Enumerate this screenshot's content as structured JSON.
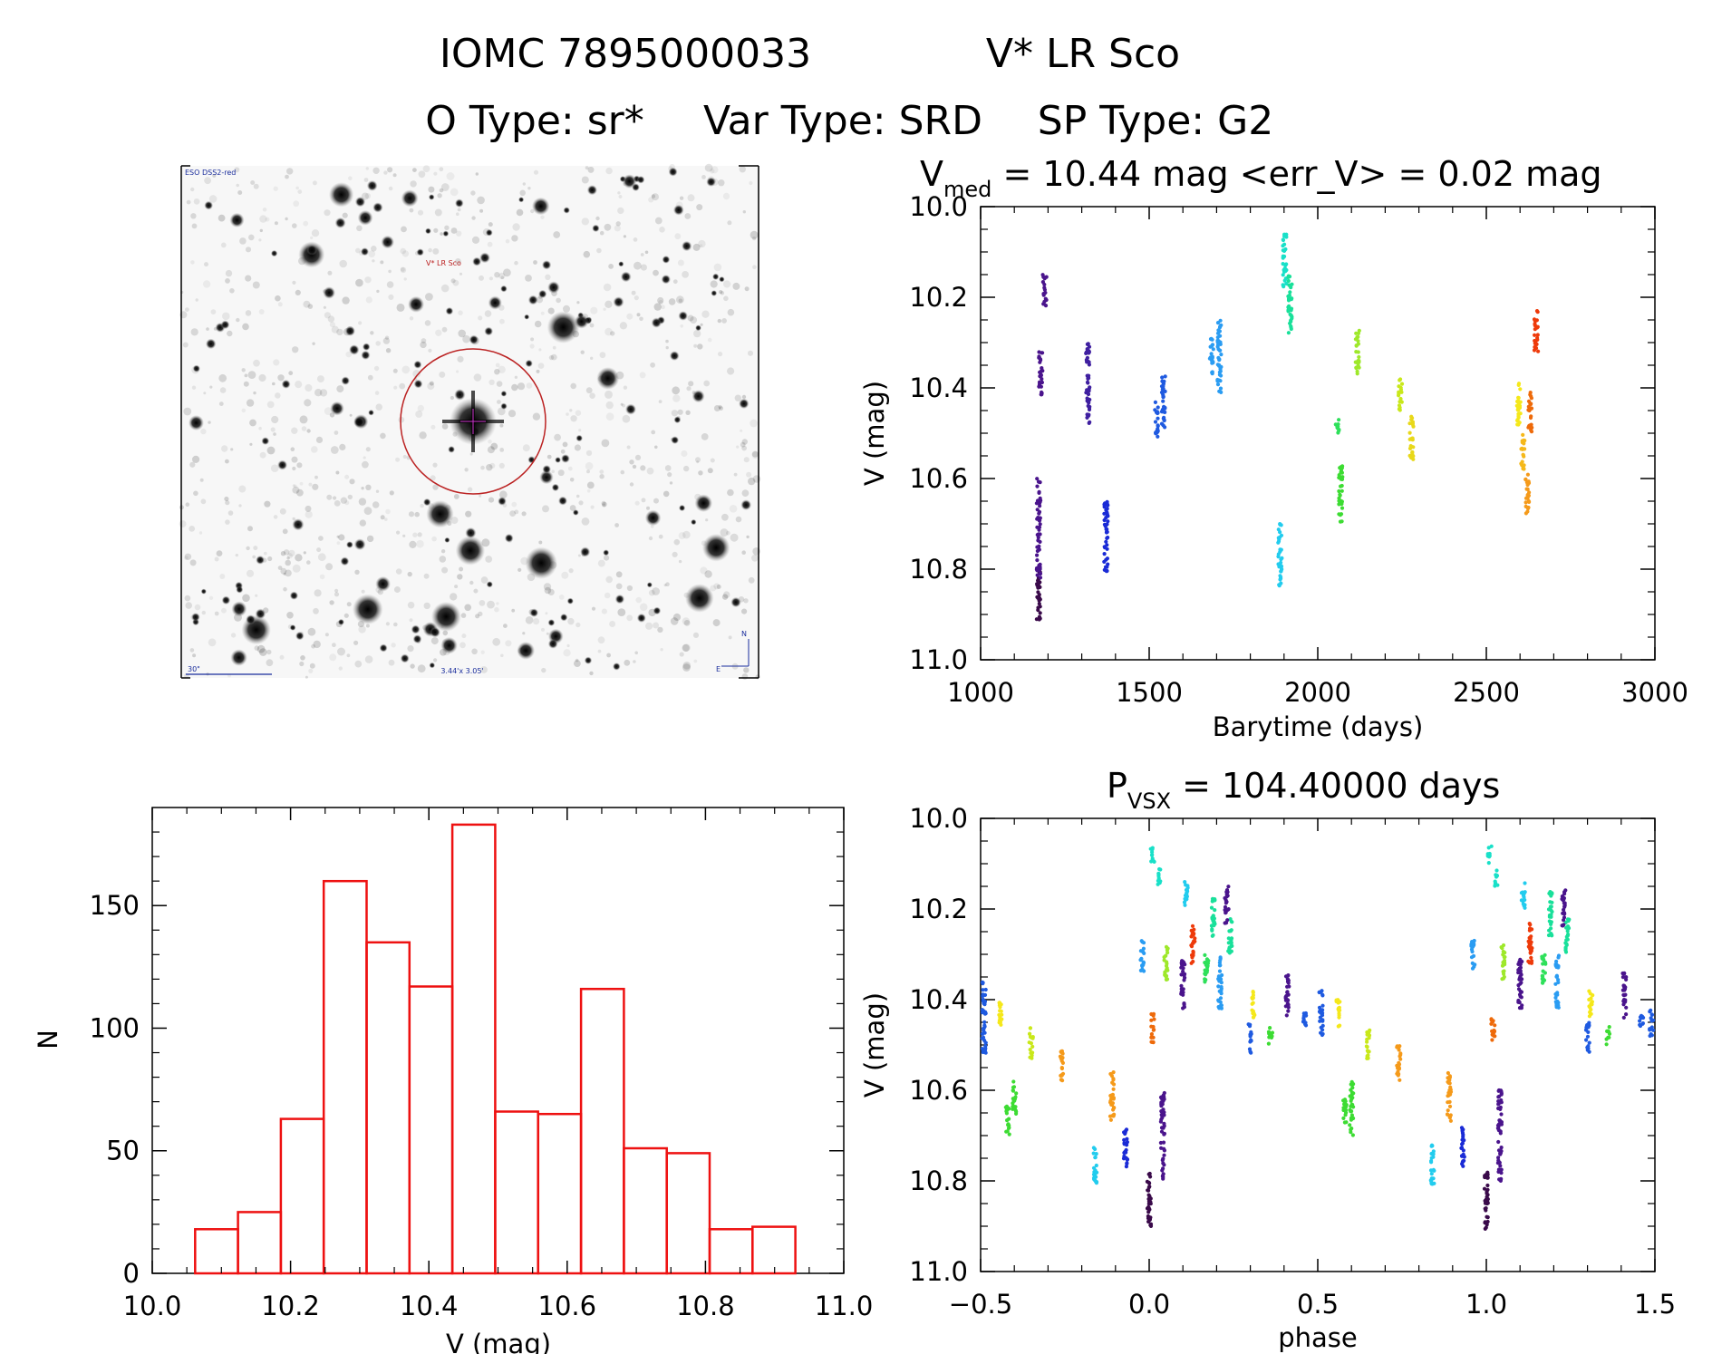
{
  "header": {
    "line1_id": "IOMC 7895000033",
    "line1_name": "V* LR Sco",
    "line2_otype": "O Type: sr*",
    "line2_vartype": "Var Type: SRD",
    "line2_sptype": "SP Type: G2"
  },
  "thumbnail": {
    "survey_label": "ESO DSS2-red",
    "target_label": "V* LR Sco",
    "scale_label": "30\"",
    "fov_label": "3.44'x 3.05'",
    "compass_n": "N",
    "compass_e": "E"
  },
  "colors": {
    "histogram": "#ee1111",
    "circle": "#bb2222",
    "thumb_label": "#1a2d9c"
  },
  "chart_data": [
    {
      "id": "lightcurve",
      "type": "scatter",
      "title_main": "V",
      "title_sub": "med",
      "title_rest": " = 10.44 mag <err_V> = 0.02 mag",
      "xlabel": "Barytime (days)",
      "ylabel": "V (mag)",
      "xlim": [
        1000,
        3000
      ],
      "ylim": [
        11.0,
        10.0
      ],
      "xticks": [
        "1000",
        "1500",
        "2000",
        "2500",
        "3000"
      ],
      "yticks": [
        "10.0",
        "10.2",
        "10.4",
        "10.6",
        "10.8",
        "11.0"
      ],
      "series": [
        {
          "color": "#3a0a4a",
          "x": 1172,
          "ymin": 10.8,
          "ymax": 10.92
        },
        {
          "color": "#4a148c",
          "x": 1172,
          "ymin": 10.6,
          "ymax": 10.82
        },
        {
          "color": "#4a148c",
          "x": 1178,
          "ymin": 10.32,
          "ymax": 10.42
        },
        {
          "color": "#4a148c",
          "x": 1190,
          "ymin": 10.15,
          "ymax": 10.22
        },
        {
          "color": "#3f1fa0",
          "x": 1318,
          "ymin": 10.3,
          "ymax": 10.48
        },
        {
          "color": "#1a2bd6",
          "x": 1372,
          "ymin": 10.65,
          "ymax": 10.81
        },
        {
          "color": "#1f5ae0",
          "x": 1522,
          "ymin": 10.43,
          "ymax": 10.51
        },
        {
          "color": "#1f5ae0",
          "x": 1542,
          "ymin": 10.37,
          "ymax": 10.5
        },
        {
          "color": "#2a9cf2",
          "x": 1685,
          "ymin": 10.29,
          "ymax": 10.37
        },
        {
          "color": "#2a9cf2",
          "x": 1708,
          "ymin": 10.25,
          "ymax": 10.41
        },
        {
          "color": "#22ccee",
          "x": 1888,
          "ymin": 10.7,
          "ymax": 10.84
        },
        {
          "color": "#19e0c8",
          "x": 1902,
          "ymin": 10.06,
          "ymax": 10.18
        },
        {
          "color": "#19e09a",
          "x": 1918,
          "ymin": 10.15,
          "ymax": 10.29
        },
        {
          "color": "#2ee05a",
          "x": 2058,
          "ymin": 10.47,
          "ymax": 10.5
        },
        {
          "color": "#3ddc33",
          "x": 2068,
          "ymin": 10.57,
          "ymax": 10.7
        },
        {
          "color": "#9ee82a",
          "x": 2118,
          "ymin": 10.27,
          "ymax": 10.37
        },
        {
          "color": "#c9e81a",
          "x": 2245,
          "ymin": 10.38,
          "ymax": 10.45
        },
        {
          "color": "#e8d81a",
          "x": 2278,
          "ymin": 10.46,
          "ymax": 10.56
        },
        {
          "color": "#f5e81a",
          "x": 2596,
          "ymin": 10.39,
          "ymax": 10.49
        },
        {
          "color": "#f5b81a",
          "x": 2608,
          "ymin": 10.5,
          "ymax": 10.58
        },
        {
          "color": "#f59a1a",
          "x": 2622,
          "ymin": 10.59,
          "ymax": 10.68
        },
        {
          "color": "#ee6a0a",
          "x": 2630,
          "ymin": 10.41,
          "ymax": 10.5
        },
        {
          "color": "#ee3a0a",
          "x": 2648,
          "ymin": 10.23,
          "ymax": 10.32
        }
      ]
    },
    {
      "id": "phased",
      "type": "scatter",
      "title_main": "P",
      "title_sub": "VSX",
      "title_rest": " = 104.40000 days",
      "xlabel": "phase",
      "ylabel": "V (mag)",
      "xlim": [
        -0.5,
        1.5
      ],
      "ylim": [
        11.0,
        10.0
      ],
      "xticks": [
        "−0.5",
        "0.0",
        "0.5",
        "1.0",
        "1.5"
      ],
      "yticks": [
        "10.0",
        "10.2",
        "10.4",
        "10.6",
        "10.8",
        "11.0"
      ],
      "series": [
        {
          "color": "#1f5ae0",
          "x": -0.49,
          "ymin": 10.36,
          "ymax": 10.52
        },
        {
          "color": "#f5e81a",
          "x": -0.44,
          "ymin": 10.4,
          "ymax": 10.46
        },
        {
          "color": "#3ddc33",
          "x": -0.42,
          "ymin": 10.63,
          "ymax": 10.7
        },
        {
          "color": "#3ddc33",
          "x": -0.4,
          "ymin": 10.58,
          "ymax": 10.66
        },
        {
          "color": "#c9e81a",
          "x": -0.35,
          "ymin": 10.46,
          "ymax": 10.53
        },
        {
          "color": "#f59a1a",
          "x": -0.26,
          "ymin": 10.5,
          "ymax": 10.58
        },
        {
          "color": "#22ccee",
          "x": -0.16,
          "ymin": 10.72,
          "ymax": 10.81
        },
        {
          "color": "#f59a1a",
          "x": -0.11,
          "ymin": 10.56,
          "ymax": 10.67
        },
        {
          "color": "#1a2bd6",
          "x": -0.07,
          "ymin": 10.68,
          "ymax": 10.77
        },
        {
          "color": "#2a9cf2",
          "x": -0.02,
          "ymin": 10.27,
          "ymax": 10.34
        },
        {
          "color": "#3a0a4a",
          "x": 0.0,
          "ymin": 10.78,
          "ymax": 10.91
        },
        {
          "color": "#ee6a0a",
          "x": 0.01,
          "ymin": 10.43,
          "ymax": 10.5
        },
        {
          "color": "#19e0c8",
          "x": 0.01,
          "ymin": 10.06,
          "ymax": 10.1
        },
        {
          "color": "#19e0c8",
          "x": 0.03,
          "ymin": 10.11,
          "ymax": 10.15
        },
        {
          "color": "#4a148c",
          "x": 0.04,
          "ymin": 10.6,
          "ymax": 10.8
        },
        {
          "color": "#9ee82a",
          "x": 0.05,
          "ymin": 10.28,
          "ymax": 10.36
        },
        {
          "color": "#4a148c",
          "x": 0.1,
          "ymin": 10.3,
          "ymax": 10.42
        },
        {
          "color": "#22ccee",
          "x": 0.11,
          "ymin": 10.14,
          "ymax": 10.2
        },
        {
          "color": "#ee3a0a",
          "x": 0.13,
          "ymin": 10.23,
          "ymax": 10.32
        },
        {
          "color": "#2ee05a",
          "x": 0.17,
          "ymin": 10.3,
          "ymax": 10.37
        },
        {
          "color": "#19e09a",
          "x": 0.19,
          "ymin": 10.16,
          "ymax": 10.26
        },
        {
          "color": "#2a9cf2",
          "x": 0.21,
          "ymin": 10.3,
          "ymax": 10.42
        },
        {
          "color": "#19e09a",
          "x": 0.24,
          "ymin": 10.22,
          "ymax": 10.3
        },
        {
          "color": "#4a148c",
          "x": 0.23,
          "ymin": 10.15,
          "ymax": 10.24
        },
        {
          "color": "#1f5ae0",
          "x": 0.3,
          "ymin": 10.45,
          "ymax": 10.52
        },
        {
          "color": "#f5e81a",
          "x": 0.31,
          "ymin": 10.38,
          "ymax": 10.44
        },
        {
          "color": "#3ddc33",
          "x": 0.36,
          "ymin": 10.46,
          "ymax": 10.5
        },
        {
          "color": "#4a148c",
          "x": 0.41,
          "ymin": 10.34,
          "ymax": 10.44
        },
        {
          "color": "#1f5ae0",
          "x": 0.46,
          "ymin": 10.43,
          "ymax": 10.46
        },
        {
          "color": "#1f5ae0",
          "x": 0.51,
          "ymin": 10.38,
          "ymax": 10.48
        },
        {
          "color": "#f5e81a",
          "x": 0.56,
          "ymin": 10.4,
          "ymax": 10.46
        },
        {
          "color": "#3ddc33",
          "x": 0.58,
          "ymin": 10.62,
          "ymax": 10.68
        },
        {
          "color": "#3ddc33",
          "x": 0.6,
          "ymin": 10.58,
          "ymax": 10.7
        },
        {
          "color": "#c9e81a",
          "x": 0.65,
          "ymin": 10.46,
          "ymax": 10.53
        },
        {
          "color": "#f59a1a",
          "x": 0.74,
          "ymin": 10.5,
          "ymax": 10.58
        },
        {
          "color": "#22ccee",
          "x": 0.84,
          "ymin": 10.72,
          "ymax": 10.81
        },
        {
          "color": "#f59a1a",
          "x": 0.89,
          "ymin": 10.56,
          "ymax": 10.67
        },
        {
          "color": "#1a2bd6",
          "x": 0.93,
          "ymin": 10.68,
          "ymax": 10.77
        },
        {
          "color": "#2a9cf2",
          "x": 0.96,
          "ymin": 10.27,
          "ymax": 10.34
        },
        {
          "color": "#3a0a4a",
          "x": 1.0,
          "ymin": 10.78,
          "ymax": 10.91
        },
        {
          "color": "#19e0c8",
          "x": 1.01,
          "ymin": 10.06,
          "ymax": 10.1
        },
        {
          "color": "#ee6a0a",
          "x": 1.02,
          "ymin": 10.43,
          "ymax": 10.5
        },
        {
          "color": "#19e0c8",
          "x": 1.03,
          "ymin": 10.11,
          "ymax": 10.15
        },
        {
          "color": "#4a148c",
          "x": 1.04,
          "ymin": 10.6,
          "ymax": 10.8
        },
        {
          "color": "#9ee82a",
          "x": 1.05,
          "ymin": 10.28,
          "ymax": 10.36
        },
        {
          "color": "#4a148c",
          "x": 1.1,
          "ymin": 10.3,
          "ymax": 10.42
        },
        {
          "color": "#22ccee",
          "x": 1.11,
          "ymin": 10.14,
          "ymax": 10.2
        },
        {
          "color": "#ee3a0a",
          "x": 1.13,
          "ymin": 10.23,
          "ymax": 10.32
        },
        {
          "color": "#2ee05a",
          "x": 1.17,
          "ymin": 10.3,
          "ymax": 10.37
        },
        {
          "color": "#19e09a",
          "x": 1.19,
          "ymin": 10.16,
          "ymax": 10.26
        },
        {
          "color": "#2a9cf2",
          "x": 1.21,
          "ymin": 10.3,
          "ymax": 10.42
        },
        {
          "color": "#19e09a",
          "x": 1.24,
          "ymin": 10.22,
          "ymax": 10.3
        },
        {
          "color": "#4a148c",
          "x": 1.23,
          "ymin": 10.15,
          "ymax": 10.24
        },
        {
          "color": "#1f5ae0",
          "x": 1.3,
          "ymin": 10.45,
          "ymax": 10.52
        },
        {
          "color": "#f5e81a",
          "x": 1.31,
          "ymin": 10.38,
          "ymax": 10.44
        },
        {
          "color": "#3ddc33",
          "x": 1.36,
          "ymin": 10.46,
          "ymax": 10.5
        },
        {
          "color": "#4a148c",
          "x": 1.41,
          "ymin": 10.34,
          "ymax": 10.44
        },
        {
          "color": "#1f5ae0",
          "x": 1.46,
          "ymin": 10.43,
          "ymax": 10.46
        },
        {
          "color": "#1f5ae0",
          "x": 1.49,
          "ymin": 10.42,
          "ymax": 10.48
        }
      ]
    },
    {
      "id": "histogram",
      "type": "bar",
      "xlabel": "V (mag)",
      "ylabel": "N",
      "xlim": [
        10.0,
        11.0
      ],
      "ylim": [
        0,
        190
      ],
      "xticks": [
        "10.0",
        "10.2",
        "10.4",
        "10.6",
        "10.8",
        "11.0"
      ],
      "yticks": [
        "0",
        "50",
        "100",
        "150"
      ],
      "bin_width": 0.062,
      "bins": [
        {
          "x0": 10.062,
          "n": 18
        },
        {
          "x0": 10.124,
          "n": 25
        },
        {
          "x0": 10.186,
          "n": 63
        },
        {
          "x0": 10.248,
          "n": 160
        },
        {
          "x0": 10.31,
          "n": 135
        },
        {
          "x0": 10.372,
          "n": 117
        },
        {
          "x0": 10.434,
          "n": 183
        },
        {
          "x0": 10.496,
          "n": 66
        },
        {
          "x0": 10.558,
          "n": 65
        },
        {
          "x0": 10.62,
          "n": 116
        },
        {
          "x0": 10.682,
          "n": 51
        },
        {
          "x0": 10.744,
          "n": 49
        },
        {
          "x0": 10.806,
          "n": 18
        },
        {
          "x0": 10.868,
          "n": 19
        }
      ]
    }
  ]
}
